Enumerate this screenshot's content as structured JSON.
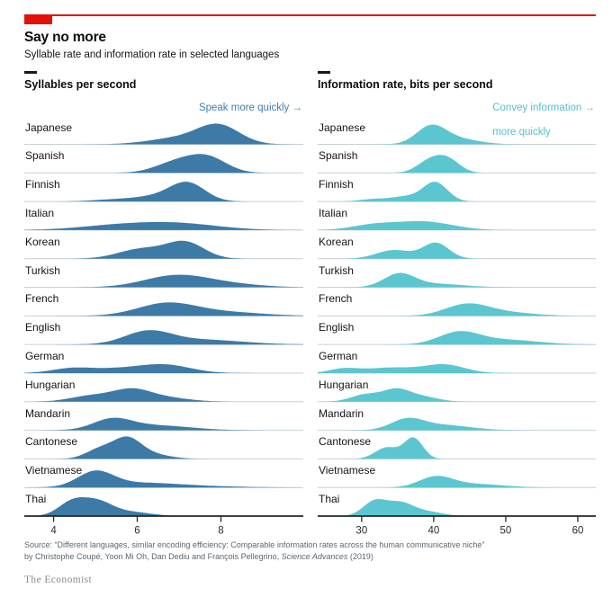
{
  "header": {
    "title": "Say no more",
    "subtitle": "Syllable rate and information rate in selected languages"
  },
  "accent": {
    "red": "#e3120b"
  },
  "chart_data": {
    "type": "area",
    "subtype": "ridgeline-density",
    "grid": false,
    "panels": [
      {
        "title": "Syllables per second",
        "color": "#3d7aa6",
        "annotation": {
          "lines": [
            "Speak more quickly →"
          ],
          "color": "#3f7fb0"
        },
        "axis": {
          "min": 3.3,
          "max": 9.97,
          "ticks": [
            4,
            6,
            8
          ]
        },
        "rows": [
          {
            "label": "Japanese",
            "mode": 7.9,
            "peak": 23,
            "components": [
              {
                "m": 7.95,
                "s": 0.5,
                "a": 1
              },
              {
                "m": 7.0,
                "s": 0.7,
                "a": 0.35
              }
            ]
          },
          {
            "label": "Spanish",
            "mode": 7.7,
            "peak": 21,
            "components": [
              {
                "m": 7.7,
                "s": 0.45,
                "a": 1
              },
              {
                "m": 6.95,
                "s": 0.5,
                "a": 0.75
              }
            ]
          },
          {
            "label": "Finnish",
            "mode": 7.2,
            "peak": 22,
            "components": [
              {
                "m": 7.2,
                "s": 0.42,
                "a": 1
              },
              {
                "m": 6.4,
                "s": 0.5,
                "a": 0.25
              },
              {
                "m": 5.4,
                "s": 0.5,
                "a": 0.1
              }
            ]
          },
          {
            "label": "Italian",
            "mode": 6.9,
            "peak": 9,
            "components": [
              {
                "m": 6.9,
                "s": 1.0,
                "a": 1
              },
              {
                "m": 5.4,
                "s": 0.9,
                "a": 0.55
              }
            ]
          },
          {
            "label": "Korean",
            "mode": 7.15,
            "peak": 20,
            "components": [
              {
                "m": 7.15,
                "s": 0.45,
                "a": 1
              },
              {
                "m": 6.1,
                "s": 0.55,
                "a": 0.6
              }
            ]
          },
          {
            "label": "Turkish",
            "mode": 6.9,
            "peak": 14,
            "components": [
              {
                "m": 6.9,
                "s": 0.75,
                "a": 1
              },
              {
                "m": 8.1,
                "s": 0.8,
                "a": 0.3
              }
            ]
          },
          {
            "label": "French",
            "mode": 6.7,
            "peak": 15,
            "components": [
              {
                "m": 6.7,
                "s": 0.7,
                "a": 1
              },
              {
                "m": 8.1,
                "s": 0.9,
                "a": 0.3
              }
            ]
          },
          {
            "label": "English",
            "mode": 6.25,
            "peak": 16,
            "components": [
              {
                "m": 6.25,
                "s": 0.55,
                "a": 1
              },
              {
                "m": 7.5,
                "s": 1.0,
                "a": 0.4
              }
            ]
          },
          {
            "label": "German",
            "mode": 6.7,
            "peak": 10,
            "components": [
              {
                "m": 6.7,
                "s": 0.6,
                "a": 1
              },
              {
                "m": 4.4,
                "s": 0.45,
                "a": 0.5
              },
              {
                "m": 5.5,
                "s": 0.8,
                "a": 0.6
              }
            ]
          },
          {
            "label": "Hungarian",
            "mode": 5.85,
            "peak": 15,
            "components": [
              {
                "m": 5.85,
                "s": 0.45,
                "a": 1
              },
              {
                "m": 4.9,
                "s": 0.5,
                "a": 0.55
              },
              {
                "m": 6.6,
                "s": 0.6,
                "a": 0.4
              }
            ]
          },
          {
            "label": "Mandarin",
            "mode": 5.4,
            "peak": 14,
            "components": [
              {
                "m": 5.4,
                "s": 0.45,
                "a": 1
              },
              {
                "m": 6.4,
                "s": 0.85,
                "a": 0.5
              }
            ]
          },
          {
            "label": "Cantonese",
            "mode": 5.75,
            "peak": 25,
            "components": [
              {
                "m": 5.75,
                "s": 0.33,
                "a": 1
              },
              {
                "m": 5.1,
                "s": 0.33,
                "a": 0.5
              },
              {
                "m": 6.3,
                "s": 0.45,
                "a": 0.25
              }
            ]
          },
          {
            "label": "Vietnamese",
            "mode": 5.0,
            "peak": 19,
            "components": [
              {
                "m": 5.0,
                "s": 0.42,
                "a": 1
              },
              {
                "m": 6.0,
                "s": 0.9,
                "a": 0.3
              },
              {
                "m": 7.5,
                "s": 1.0,
                "a": 0.08
              }
            ]
          },
          {
            "label": "Thai",
            "mode": 4.45,
            "peak": 21,
            "components": [
              {
                "m": 4.45,
                "s": 0.33,
                "a": 1
              },
              {
                "m": 5.05,
                "s": 0.35,
                "a": 0.92
              },
              {
                "m": 5.8,
                "s": 0.5,
                "a": 0.3
              }
            ]
          }
        ]
      },
      {
        "title": "Information rate, bits per second",
        "color": "#5bc6cf",
        "annotation": {
          "lines": [
            "Convey information →",
            "more quickly"
          ],
          "color": "#54c1cd"
        },
        "axis": {
          "min": 23.9,
          "max": 62.5,
          "ticks": [
            30,
            40,
            50,
            60
          ]
        },
        "rows": [
          {
            "label": "Japanese",
            "mode": 39.6,
            "peak": 22,
            "components": [
              {
                "m": 39.6,
                "s": 2.0,
                "a": 1
              },
              {
                "m": 43,
                "s": 3.0,
                "a": 0.35
              }
            ]
          },
          {
            "label": "Spanish",
            "mode": 41.9,
            "peak": 20,
            "components": [
              {
                "m": 41.9,
                "s": 1.7,
                "a": 1
              },
              {
                "m": 39.3,
                "s": 1.7,
                "a": 0.8
              }
            ]
          },
          {
            "label": "Finnish",
            "mode": 40.2,
            "peak": 22,
            "components": [
              {
                "m": 40.2,
                "s": 1.7,
                "a": 1
              },
              {
                "m": 36,
                "s": 2.0,
                "a": 0.25
              },
              {
                "m": 31.5,
                "s": 1.8,
                "a": 0.12
              }
            ]
          },
          {
            "label": "Italian",
            "mode": 38.5,
            "peak": 10,
            "components": [
              {
                "m": 38.5,
                "s": 4.0,
                "a": 1
              },
              {
                "m": 31.5,
                "s": 3.0,
                "a": 0.55
              }
            ]
          },
          {
            "label": "Korean",
            "mode": 40.3,
            "peak": 18,
            "components": [
              {
                "m": 40.3,
                "s": 1.8,
                "a": 1
              },
              {
                "m": 34.5,
                "s": 2.4,
                "a": 0.55
              }
            ]
          },
          {
            "label": "Turkish",
            "mode": 35.2,
            "peak": 16,
            "components": [
              {
                "m": 35.2,
                "s": 2.1,
                "a": 1
              },
              {
                "m": 40,
                "s": 4.0,
                "a": 0.28
              }
            ]
          },
          {
            "label": "French",
            "mode": 44.6,
            "peak": 14,
            "components": [
              {
                "m": 44.6,
                "s": 3.0,
                "a": 1
              },
              {
                "m": 50,
                "s": 4.0,
                "a": 0.3
              }
            ]
          },
          {
            "label": "English",
            "mode": 43.5,
            "peak": 15,
            "components": [
              {
                "m": 43.5,
                "s": 2.8,
                "a": 1
              },
              {
                "m": 50,
                "s": 4.5,
                "a": 0.4
              }
            ]
          },
          {
            "label": "German",
            "mode": 41.5,
            "peak": 10,
            "components": [
              {
                "m": 41.5,
                "s": 2.8,
                "a": 1
              },
              {
                "m": 27.5,
                "s": 2.0,
                "a": 0.5
              },
              {
                "m": 34,
                "s": 3.5,
                "a": 0.65
              }
            ]
          },
          {
            "label": "Hungarian",
            "mode": 34.8,
            "peak": 15,
            "components": [
              {
                "m": 34.8,
                "s": 1.9,
                "a": 1
              },
              {
                "m": 30.5,
                "s": 2.0,
                "a": 0.6
              },
              {
                "m": 38.5,
                "s": 2.2,
                "a": 0.4
              }
            ]
          },
          {
            "label": "Mandarin",
            "mode": 36.3,
            "peak": 14,
            "components": [
              {
                "m": 36.3,
                "s": 2.2,
                "a": 1
              },
              {
                "m": 41,
                "s": 4.0,
                "a": 0.55
              }
            ]
          },
          {
            "label": "Cantonese",
            "mode": 37.2,
            "peak": 24,
            "components": [
              {
                "m": 37.2,
                "s": 1.3,
                "a": 1
              },
              {
                "m": 33.5,
                "s": 1.6,
                "a": 0.55
              }
            ]
          },
          {
            "label": "Vietnamese",
            "mode": 40.3,
            "peak": 13,
            "components": [
              {
                "m": 40.3,
                "s": 2.3,
                "a": 1
              },
              {
                "m": 45.5,
                "s": 4.0,
                "a": 0.35
              }
            ]
          },
          {
            "label": "Thai",
            "mode": 31.8,
            "peak": 19,
            "components": [
              {
                "m": 31.8,
                "s": 1.6,
                "a": 1
              },
              {
                "m": 35.3,
                "s": 1.8,
                "a": 0.85
              },
              {
                "m": 39,
                "s": 2.2,
                "a": 0.3
              }
            ]
          }
        ]
      }
    ]
  },
  "source": {
    "line1": "Source: “Different languages, similar encoding efficiency: Comparable information rates across the human communicative niche”",
    "line2_pre": "by Christophe Coupé, Yoon Mi Oh, Dan Dediu and François Pellegrino, ",
    "journal": "Science Advances",
    "line2_post": " (2019)"
  },
  "footer": {
    "brand": "The Economist"
  }
}
